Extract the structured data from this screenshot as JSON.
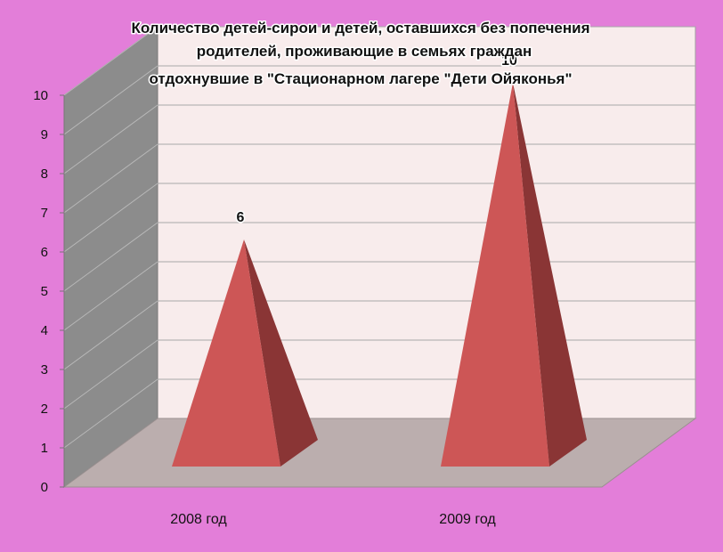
{
  "chart_data": {
    "type": "bar",
    "title_lines": [
      "Количество детей-сирои и детей, оставшихся без попечения",
      "родителей,  проживающие в семьях граждан",
      "отдохнувшие в \"Стационарном лагере \"Дети Ойяконья\""
    ],
    "categories": [
      "2008 год",
      "2009 год"
    ],
    "values": [
      6,
      10
    ],
    "data_labels": [
      "6",
      "10"
    ],
    "ylim": [
      0,
      10
    ],
    "y_ticks": [
      "0",
      "1",
      "2",
      "3",
      "4",
      "5",
      "6",
      "7",
      "8",
      "9",
      "10"
    ],
    "grid": true,
    "legend": "none",
    "bar_shape": "pyramid",
    "colors": {
      "background": "#e37ed9",
      "back_wall": "#f8ecec",
      "side_wall": "#8c8c8c",
      "floor": "#bbaeae",
      "bar_front": "#cd5656",
      "bar_side": "#8a3535",
      "gridline": "#a9a9a9"
    }
  }
}
